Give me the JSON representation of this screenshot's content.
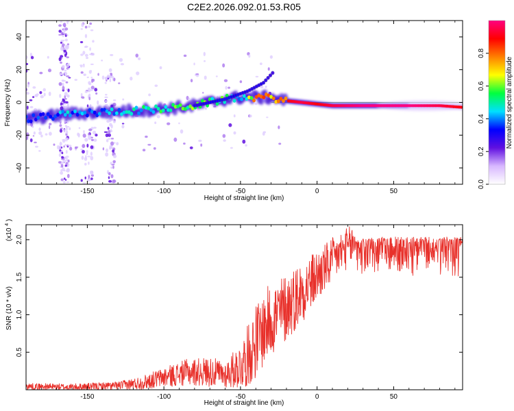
{
  "figure": {
    "title": "C2E2.2026.092.01.53.R05"
  },
  "chart_data": [
    {
      "type": "heatmap",
      "name": "spectrogram",
      "xlabel": "Height of straight line (km)",
      "ylabel": "Frequency (Hz)",
      "xlim": [
        -190,
        95
      ],
      "ylim": [
        -50,
        50
      ],
      "x_ticks": [
        -150,
        -100,
        -50,
        0,
        50
      ],
      "x_tick_labels": [
        "-150",
        "-100",
        "-50",
        "0",
        "50"
      ],
      "y_ticks": [
        -40,
        -20,
        0,
        20,
        40
      ],
      "y_tick_labels": [
        "-40",
        "-20",
        "0",
        "20",
        "40"
      ],
      "colorbar": {
        "label": "Normalized spectral amplitude",
        "range": [
          0,
          1
        ],
        "ticks": [
          0.0,
          0.2,
          0.4,
          0.6,
          0.8
        ],
        "tick_labels": [
          "0.0",
          "0.2",
          "0.4",
          "0.6",
          "0.8"
        ],
        "colors": [
          "#ffffff",
          "#d8b8ff",
          "#6010e0",
          "#0000ff",
          "#00e0ff",
          "#00ff40",
          "#ffff00",
          "#ff8000",
          "#ff0000",
          "#ff0080"
        ]
      },
      "main_track": {
        "x": [
          -190,
          -160,
          -140,
          -120,
          -100,
          -80,
          -60,
          -50,
          -40,
          -30,
          -20,
          -10,
          0,
          10,
          30,
          60,
          80,
          95
        ],
        "y": [
          -10,
          -7,
          -6,
          -5,
          -4,
          -2,
          2,
          3,
          3,
          3,
          1,
          0,
          -1,
          -2,
          -2,
          -2,
          -2,
          -3
        ],
        "amplitude": [
          0.35,
          0.45,
          0.4,
          0.5,
          0.55,
          0.6,
          0.55,
          0.5,
          0.75,
          0.8,
          0.9,
          0.95,
          0.9,
          0.95,
          1.0,
          1.0,
          0.95,
          0.9
        ]
      },
      "secondary_track": {
        "x": [
          -80,
          -60,
          -45,
          -35,
          -28
        ],
        "y": [
          -2,
          2,
          7,
          12,
          19
        ],
        "amplitude": [
          0.3,
          0.35,
          0.3,
          0.3,
          0.25
        ]
      }
    },
    {
      "type": "line",
      "name": "snr",
      "xlabel": "Height of straight line (km)",
      "ylabel": "SNR (10 * v/v)",
      "multiplier_label": "(x10",
      "multiplier_exponent": "4",
      "multiplier_close": ")",
      "xlim": [
        -190,
        95
      ],
      "ylim": [
        0,
        2.2
      ],
      "x_ticks": [
        -150,
        -100,
        -50,
        0,
        50
      ],
      "x_tick_labels": [
        "-150",
        "-100",
        "-50",
        "0",
        "50"
      ],
      "y_ticks": [
        0.5,
        1.0,
        1.5,
        2.0
      ],
      "y_tick_labels": [
        "0.5",
        "1.0",
        "1.5",
        "2.0"
      ],
      "color": "#e8302a",
      "envelope": {
        "x": [
          -190,
          -160,
          -130,
          -115,
          -100,
          -85,
          -70,
          -60,
          -50,
          -45,
          -40,
          -35,
          -30,
          -25,
          -20,
          -15,
          -10,
          -5,
          0,
          5,
          10,
          15,
          20,
          25,
          30,
          35,
          40,
          50,
          60,
          70,
          80,
          95
        ],
        "y": [
          0.05,
          0.04,
          0.06,
          0.1,
          0.18,
          0.25,
          0.26,
          0.22,
          0.35,
          0.5,
          0.7,
          0.85,
          1.0,
          1.05,
          1.15,
          1.25,
          1.35,
          1.45,
          1.55,
          1.65,
          1.75,
          1.85,
          1.92,
          1.98,
          2.0,
          2.02,
          2.02,
          2.02,
          2.02,
          2.02,
          2.02,
          2.02
        ],
        "noise": [
          0.04,
          0.04,
          0.05,
          0.08,
          0.12,
          0.16,
          0.18,
          0.16,
          0.28,
          0.38,
          0.45,
          0.45,
          0.45,
          0.45,
          0.42,
          0.4,
          0.38,
          0.35,
          0.32,
          0.3,
          0.28,
          0.26,
          0.25,
          0.24,
          0.22,
          0.2,
          0.2,
          0.2,
          0.22,
          0.22,
          0.22,
          0.24
        ]
      }
    }
  ]
}
